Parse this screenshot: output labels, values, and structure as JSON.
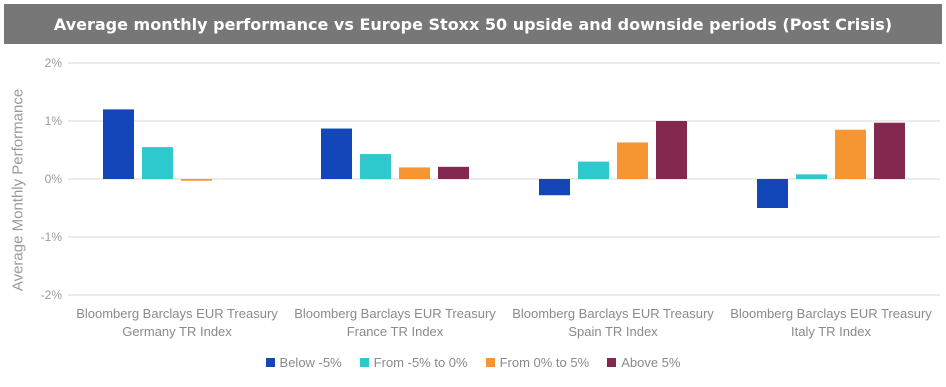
{
  "chart_data": {
    "type": "bar",
    "title": "Average monthly performance vs Europe Stoxx 50 upside and downside periods (Post Crisis)",
    "ylabel": "Average Monthly Performance",
    "ylim": [
      -2,
      2
    ],
    "yticks": [
      "2%",
      "1%",
      "0%",
      "-1%",
      "-2%"
    ],
    "yticks_values": [
      2,
      1,
      0,
      -1,
      -2
    ],
    "grid": true,
    "legend_position": "bottom",
    "categories": [
      [
        "Bloomberg Barclays EUR Treasury",
        "Germany TR Index"
      ],
      [
        "Bloomberg Barclays EUR Treasury",
        "France TR Index"
      ],
      [
        "Bloomberg Barclays EUR Treasury",
        "Spain TR Index"
      ],
      [
        "Bloomberg Barclays EUR Treasury",
        "Italy TR Index"
      ]
    ],
    "series": [
      {
        "name": "Below -5%",
        "color": "#1346b8",
        "values": [
          1.2,
          0.87,
          -0.28,
          -0.5
        ]
      },
      {
        "name": "From -5% to 0%",
        "color": "#2ec9cc",
        "values": [
          0.55,
          0.43,
          0.3,
          0.08
        ]
      },
      {
        "name": "From 0% to 5%",
        "color": "#f59632",
        "values": [
          -0.03,
          0.2,
          0.63,
          0.85
        ]
      },
      {
        "name": "Above 5%",
        "color": "#83294f",
        "values": [
          0.0,
          0.21,
          1.0,
          0.97
        ]
      }
    ]
  }
}
